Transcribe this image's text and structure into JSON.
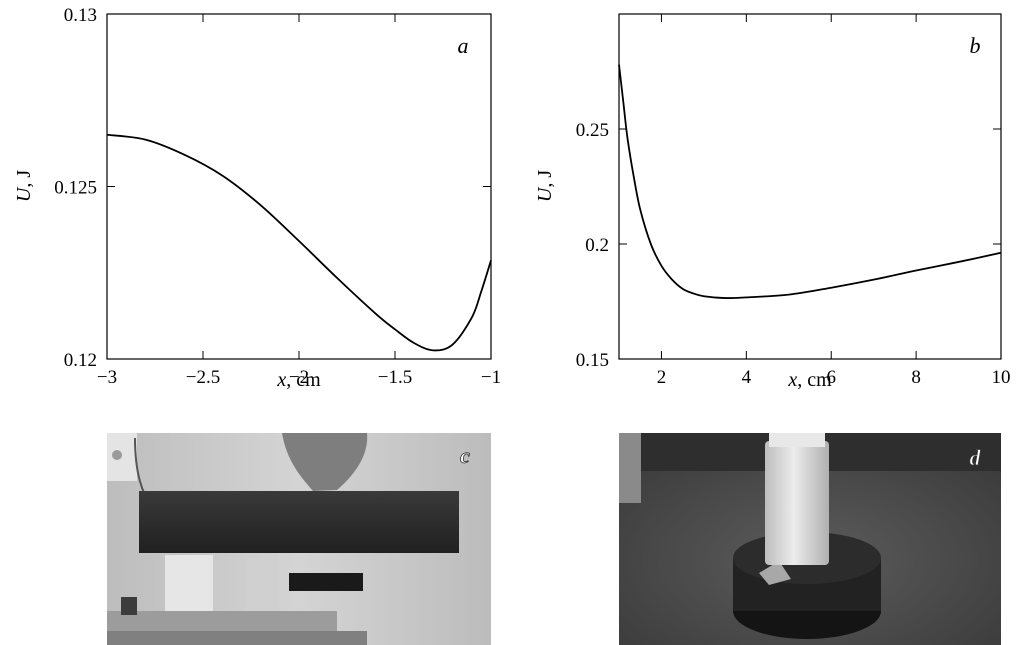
{
  "chart_data": [
    {
      "type": "line",
      "panel_label": "a",
      "xlabel_var": "x",
      "xlabel_unit": ", cm",
      "ylabel_var": "U",
      "ylabel_unit": ", J",
      "xlim": [
        -3,
        -1
      ],
      "ylim": [
        0.12,
        0.13
      ],
      "xticks": [
        -3,
        -2.5,
        -2,
        -1.5,
        -1
      ],
      "xtick_labels": [
        "−3",
        "−2.5",
        "−2",
        "−1.5",
        "−1"
      ],
      "yticks": [
        0.12,
        0.125,
        0.13
      ],
      "ytick_labels": [
        "0.12",
        "0.125",
        "0.13"
      ],
      "grid": false,
      "series": [
        {
          "x": [
            -3.0,
            -2.8,
            -2.6,
            -2.4,
            -2.2,
            -2.0,
            -1.8,
            -1.6,
            -1.5,
            -1.4,
            -1.3,
            -1.2,
            -1.1,
            -1.05,
            -1.0
          ],
          "y": [
            0.1265,
            0.12636,
            0.12593,
            0.12532,
            0.12446,
            0.12342,
            0.12234,
            0.12131,
            0.12086,
            0.12046,
            0.12025,
            0.12042,
            0.1212,
            0.12197,
            0.12286
          ]
        }
      ]
    },
    {
      "type": "line",
      "panel_label": "b",
      "xlabel_var": "x",
      "xlabel_unit": ", cm",
      "ylabel_var": "U",
      "ylabel_unit": ", J",
      "xlim": [
        1,
        10
      ],
      "ylim": [
        0.15,
        0.3
      ],
      "xticks": [
        2,
        4,
        6,
        8,
        10
      ],
      "xtick_labels": [
        "2",
        "4",
        "6",
        "8",
        "10"
      ],
      "yticks": [
        0.15,
        0.2,
        0.25
      ],
      "ytick_labels": [
        "0.15",
        "0.2",
        "0.25"
      ],
      "grid": false,
      "series": [
        {
          "x": [
            1.0,
            1.1,
            1.2,
            1.35,
            1.5,
            1.75,
            2.0,
            2.25,
            2.5,
            2.75,
            3.0,
            3.5,
            4.0,
            5.0,
            6.0,
            7.0,
            8.0,
            9.0,
            10.0
          ],
          "y": [
            0.278,
            0.262,
            0.246,
            0.229,
            0.215,
            0.2,
            0.1905,
            0.1845,
            0.1805,
            0.1785,
            0.1773,
            0.1765,
            0.1768,
            0.178,
            0.181,
            0.1845,
            0.1885,
            0.1922,
            0.1962
          ]
        }
      ]
    }
  ],
  "photos": [
    {
      "label": "c",
      "colors": {
        "bg": "#c9c9c9",
        "magnet": "#2e2e2e",
        "hand": "#7c7c7c"
      }
    },
    {
      "label": "d",
      "colors": {
        "bg": "#4e4e4e",
        "cylinder": "#d9d9d9",
        "base": "#222222"
      }
    }
  ]
}
